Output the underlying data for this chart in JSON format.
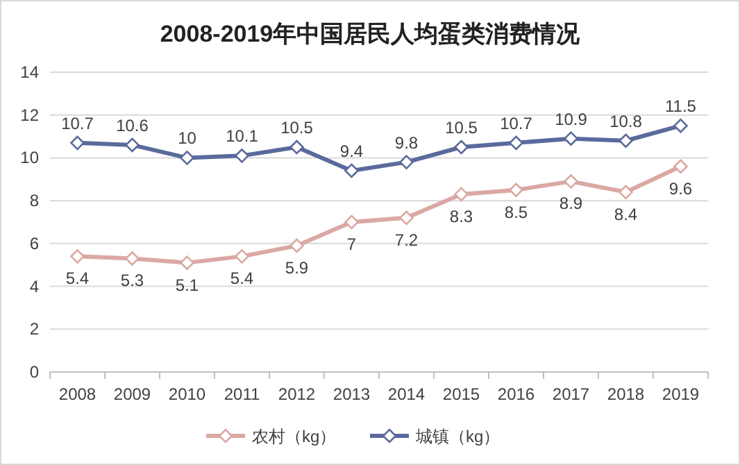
{
  "chart_data": {
    "type": "line",
    "title": "2008-2019年中国居民人均蛋类消费情况",
    "categories": [
      "2008",
      "2009",
      "2010",
      "2011",
      "2012",
      "2013",
      "2014",
      "2015",
      "2016",
      "2017",
      "2018",
      "2019"
    ],
    "series": [
      {
        "name": "农村（kg）",
        "color": "#dba8a4",
        "values": [
          5.4,
          5.3,
          5.1,
          5.4,
          5.9,
          7,
          7.2,
          8.3,
          8.5,
          8.9,
          8.4,
          9.6
        ]
      },
      {
        "name": "城镇（kg）",
        "color": "#5b6a9c",
        "values": [
          10.7,
          10.6,
          10,
          10.1,
          10.5,
          9.4,
          9.8,
          10.5,
          10.7,
          10.9,
          10.8,
          11.5
        ]
      }
    ],
    "ylim": [
      0,
      14
    ],
    "yticks": [
      0,
      2,
      4,
      6,
      8,
      10,
      12,
      14
    ],
    "grid": "y",
    "legend": "bottom",
    "marker": "diamond",
    "line_style": "solid",
    "data_labels": true
  }
}
